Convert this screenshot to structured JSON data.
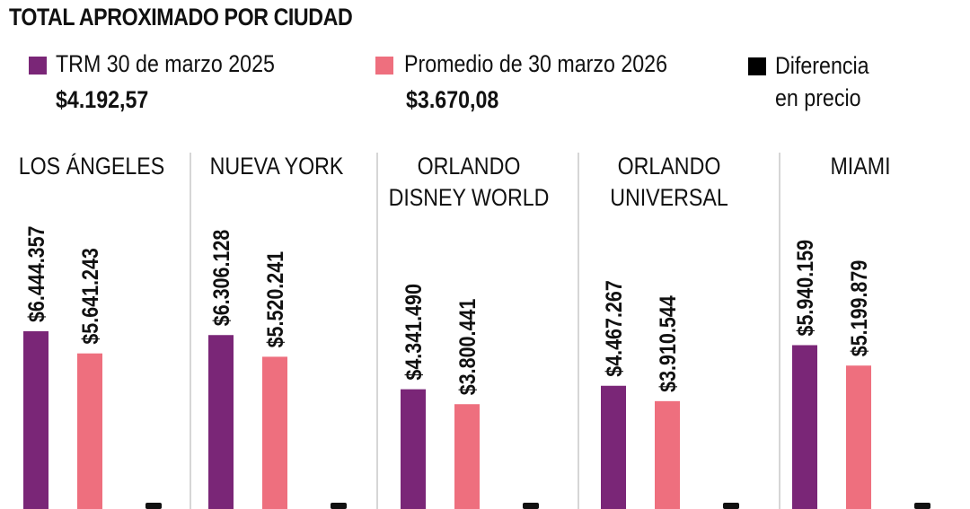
{
  "title": "TOTAL APROXIMADO POR CIUDAD",
  "legend": [
    {
      "label": "TRM 30 de marzo 2025",
      "sub": "$4.192,57",
      "color": "#7a2677"
    },
    {
      "label": "Promedio de 30 marzo 2026",
      "sub": "$3.670,08",
      "color": "#ee6f7e"
    },
    {
      "label": "Diferencia",
      "label2": "en precio",
      "color": "#000000"
    }
  ],
  "chart_data": {
    "type": "bar",
    "title": "TOTAL APROXIMADO POR CIUDAD",
    "categories": [
      [
        "LOS ÁNGELES"
      ],
      [
        "NUEVA YORK"
      ],
      [
        "ORLANDO",
        "DISNEY WORLD"
      ],
      [
        "ORLANDO",
        "UNIVERSAL"
      ],
      [
        "MIAMI"
      ]
    ],
    "series": [
      {
        "name": "TRM 30 de marzo 2025",
        "color": "#7a2677",
        "values": [
          6444357,
          6306128,
          4341490,
          4467267,
          5940159
        ],
        "labels": [
          "$6.444.357",
          "$6.306.128",
          "$4.341.490",
          "$4.467.267",
          "$5.940.159"
        ]
      },
      {
        "name": "Promedio de 30 marzo 2026",
        "color": "#ee6f7e",
        "values": [
          5641243,
          5520241,
          3800441,
          3910544,
          5199879
        ],
        "labels": [
          "$5.641.243",
          "$5.520.241",
          "$3.800.441",
          "$3.910.544",
          "$5.199.879"
        ]
      }
    ],
    "legend_position": "top",
    "grid": false
  }
}
